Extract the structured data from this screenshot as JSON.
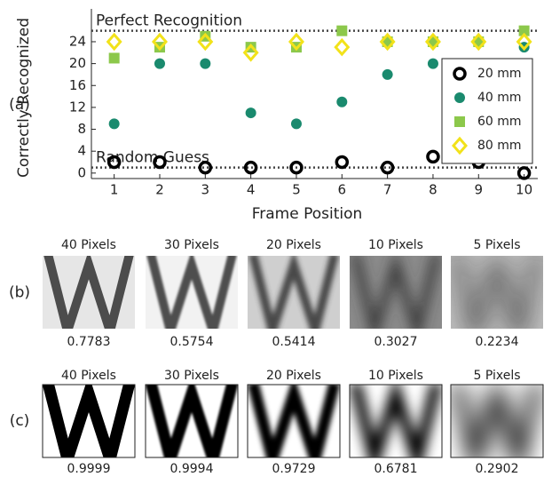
{
  "chart_data": {
    "type": "scatter",
    "xlabel": "Frame Position",
    "ylabel": "Correctly Recognized",
    "panel_label": "(a)",
    "x": [
      1,
      2,
      3,
      4,
      5,
      6,
      7,
      8,
      9,
      10
    ],
    "xlim": [
      0.5,
      10.3
    ],
    "xticks": [
      1,
      2,
      3,
      4,
      5,
      6,
      7,
      8,
      9,
      10
    ],
    "ylim": [
      -1,
      30
    ],
    "yticks": [
      0,
      4,
      8,
      12,
      16,
      20,
      24
    ],
    "hlines": [
      {
        "value": 26,
        "label": "Perfect Recognition"
      },
      {
        "value": 1,
        "label": "Random Guess"
      }
    ],
    "legend": "right",
    "series": [
      {
        "name": "20 mm",
        "color": "#000000",
        "marker": "open-circle",
        "values": [
          2,
          2,
          1,
          1,
          1,
          2,
          1,
          3,
          2,
          0
        ]
      },
      {
        "name": "40 mm",
        "color": "#1a8a6e",
        "marker": "circle",
        "values": [
          9,
          20,
          20,
          11,
          9,
          13,
          18,
          20,
          24,
          23
        ]
      },
      {
        "name": "60 mm",
        "color": "#8cc84b",
        "marker": "square",
        "values": [
          21,
          23,
          25,
          23,
          23,
          26,
          24,
          24,
          24,
          26
        ]
      },
      {
        "name": "80 mm",
        "color": "#f2e21a",
        "marker": "diamond",
        "values": [
          24,
          24,
          24,
          22,
          24,
          23,
          24,
          24,
          24,
          24
        ]
      }
    ]
  },
  "panels": [
    {
      "label": "(b)",
      "items": [
        {
          "title": "40 Pixels",
          "score": "0.7783"
        },
        {
          "title": "30 Pixels",
          "score": "0.5754"
        },
        {
          "title": "20 Pixels",
          "score": "0.5414"
        },
        {
          "title": "10 Pixels",
          "score": "0.3027"
        },
        {
          "title": "5 Pixels",
          "score": "0.2234"
        }
      ]
    },
    {
      "label": "(c)",
      "items": [
        {
          "title": "40 Pixels",
          "score": "0.9999"
        },
        {
          "title": "30 Pixels",
          "score": "0.9994"
        },
        {
          "title": "20 Pixels",
          "score": "0.9729"
        },
        {
          "title": "10 Pixels",
          "score": "0.6781"
        },
        {
          "title": "5 Pixels",
          "score": "0.2902"
        }
      ]
    }
  ]
}
